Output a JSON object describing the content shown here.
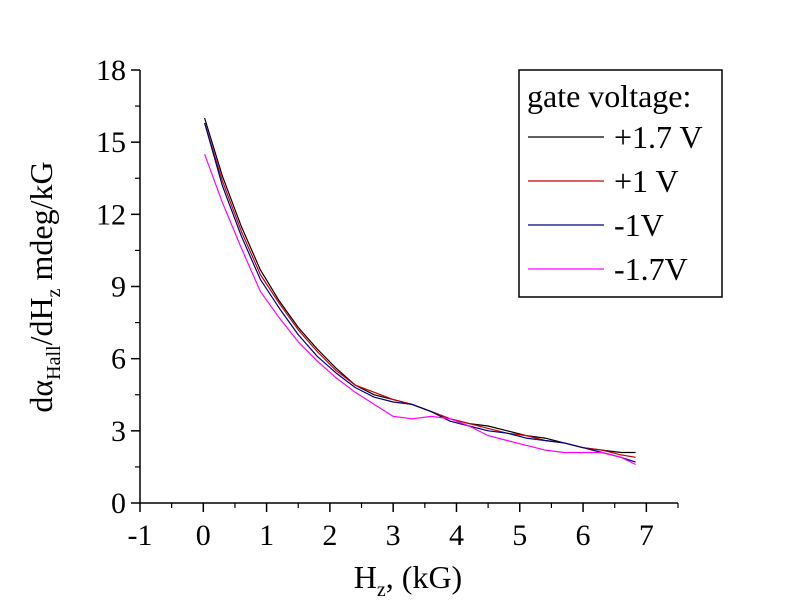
{
  "chart_data": {
    "type": "line",
    "xlabel": {
      "main": "H",
      "sub": "z",
      "rest": ", (kG)"
    },
    "ylabel": {
      "p1": "dα",
      "sub1": "Hall",
      "p2": "/dH",
      "sub2": "z",
      "p3": " mdeg/kG"
    },
    "xlim": [
      -1,
      7.5
    ],
    "ylim": [
      0,
      18
    ],
    "xticks": [
      -1,
      0,
      1,
      2,
      3,
      4,
      5,
      6,
      7
    ],
    "yticks": [
      0,
      3,
      6,
      9,
      12,
      15,
      18
    ],
    "xtick_labels": [
      "-1",
      "0",
      "1",
      "2",
      "3",
      "4",
      "5",
      "6",
      "7"
    ],
    "ytick_labels": [
      "0",
      "3",
      "6",
      "9",
      "12",
      "15",
      "18"
    ],
    "grid": false,
    "legend": {
      "title": "gate voltage:",
      "placement": "top-right"
    },
    "series": [
      {
        "name": "+1.7 V",
        "color": "#000000",
        "x": [
          0.02,
          0.3,
          0.6,
          0.9,
          1.2,
          1.5,
          1.8,
          2.1,
          2.4,
          2.7,
          3.0,
          3.3,
          3.6,
          3.9,
          4.2,
          4.5,
          4.8,
          5.1,
          5.4,
          5.7,
          6.0,
          6.3,
          6.6,
          6.83
        ],
        "y": [
          16.0,
          13.6,
          11.5,
          9.7,
          8.4,
          7.3,
          6.4,
          5.6,
          4.9,
          4.5,
          4.3,
          4.1,
          3.8,
          3.5,
          3.3,
          3.2,
          3.0,
          2.8,
          2.7,
          2.5,
          2.3,
          2.2,
          2.1,
          2.1
        ]
      },
      {
        "name": "+1 V",
        "color": "#cc0000",
        "x": [
          0.02,
          0.3,
          0.6,
          0.9,
          1.2,
          1.5,
          1.8,
          2.1,
          2.4,
          2.7,
          3.0,
          3.3,
          3.6,
          3.9,
          4.2,
          4.5,
          4.8,
          5.1,
          5.4,
          5.7,
          6.0,
          6.3,
          6.6,
          6.83
        ],
        "y": [
          15.8,
          13.4,
          11.3,
          9.5,
          8.3,
          7.2,
          6.3,
          5.5,
          4.9,
          4.6,
          4.3,
          4.1,
          3.8,
          3.5,
          3.3,
          3.1,
          2.9,
          2.8,
          2.6,
          2.5,
          2.3,
          2.2,
          2.0,
          1.9
        ]
      },
      {
        "name": "-1V",
        "color": "#000080",
        "x": [
          0.02,
          0.3,
          0.6,
          0.9,
          1.2,
          1.5,
          1.8,
          2.1,
          2.4,
          2.7,
          3.0,
          3.3,
          3.6,
          3.9,
          4.2,
          4.5,
          4.8,
          5.1,
          5.4,
          5.7,
          6.0,
          6.3,
          6.6,
          6.83
        ],
        "y": [
          15.8,
          13.2,
          11.1,
          9.3,
          8.1,
          7.0,
          6.1,
          5.4,
          4.8,
          4.4,
          4.2,
          4.1,
          3.8,
          3.4,
          3.2,
          3.0,
          2.9,
          2.7,
          2.6,
          2.5,
          2.3,
          2.1,
          1.9,
          1.7
        ]
      },
      {
        "name": "-1.7V",
        "color": "#ff00ff",
        "x": [
          0.02,
          0.3,
          0.6,
          0.9,
          1.2,
          1.5,
          1.8,
          2.1,
          2.4,
          2.7,
          3.0,
          3.3,
          3.6,
          3.9,
          4.2,
          4.5,
          4.8,
          5.1,
          5.4,
          5.7,
          6.0,
          6.3,
          6.6,
          6.83
        ],
        "y": [
          14.5,
          12.5,
          10.6,
          8.8,
          7.7,
          6.7,
          5.9,
          5.2,
          4.6,
          4.1,
          3.6,
          3.5,
          3.6,
          3.5,
          3.2,
          2.8,
          2.6,
          2.4,
          2.2,
          2.1,
          2.1,
          2.1,
          1.9,
          1.6
        ]
      }
    ]
  }
}
